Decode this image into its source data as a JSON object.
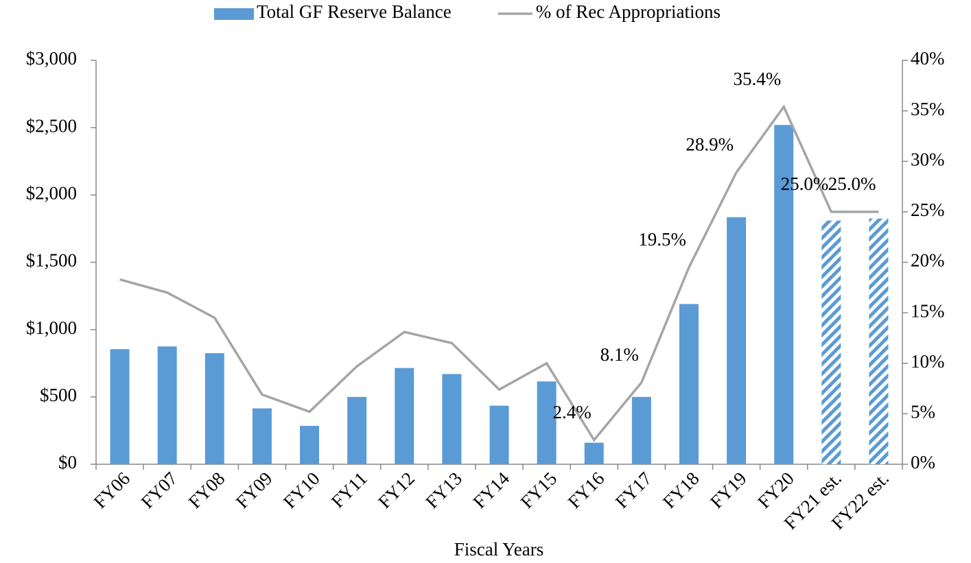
{
  "chart_data": {
    "type": "bar_line",
    "x_label": "Fiscal Years",
    "categories": [
      "FY06",
      "FY07",
      "FY08",
      "FY09",
      "FY10",
      "FY11",
      "FY12",
      "FY13",
      "FY14",
      "FY15",
      "FY16",
      "FY17",
      "FY18",
      "FY19",
      "FY20",
      "FY21 est.",
      "FY22 est."
    ],
    "series": [
      {
        "name": "Total GF Reserve Balance",
        "type": "bar",
        "color": "#5b9bd5",
        "values": [
          855,
          875,
          825,
          415,
          285,
          500,
          715,
          670,
          435,
          615,
          160,
          500,
          1190,
          1835,
          2520,
          1810,
          1825
        ],
        "hatched": [
          false,
          false,
          false,
          false,
          false,
          false,
          false,
          false,
          false,
          false,
          false,
          false,
          false,
          false,
          false,
          true,
          true
        ]
      },
      {
        "name": "% of Rec Appropriations",
        "type": "line",
        "color": "#a5a5a5",
        "axis": "y2",
        "values": [
          18.3,
          17.0,
          14.5,
          6.9,
          5.2,
          9.7,
          13.1,
          12.0,
          7.4,
          10.0,
          2.4,
          8.1,
          19.5,
          28.9,
          35.4,
          25.0,
          25.0
        ],
        "value_labels": [
          null,
          null,
          null,
          null,
          null,
          null,
          null,
          null,
          null,
          null,
          "2.4%",
          "8.1%",
          "19.5%",
          "28.9%",
          "35.4%",
          "25.0%",
          "25.0%"
        ]
      }
    ],
    "ylim": [
      0,
      3000
    ],
    "yticks": [
      {
        "value": 0,
        "label": "$0"
      },
      {
        "value": 500,
        "label": "$500"
      },
      {
        "value": 1000,
        "label": "$1,000"
      },
      {
        "value": 1500,
        "label": "$1,500"
      },
      {
        "value": 2000,
        "label": "$2,000"
      },
      {
        "value": 2500,
        "label": "$2,500"
      },
      {
        "value": 3000,
        "label": "$3,000"
      }
    ],
    "y2lim": [
      0,
      40
    ],
    "y2ticks": [
      {
        "value": 0,
        "label": "0%"
      },
      {
        "value": 5,
        "label": "5%"
      },
      {
        "value": 10,
        "label": "10%"
      },
      {
        "value": 15,
        "label": "15%"
      },
      {
        "value": 20,
        "label": "20%"
      },
      {
        "value": 25,
        "label": "25%"
      },
      {
        "value": 30,
        "label": "30%"
      },
      {
        "value": 35,
        "label": "35%"
      },
      {
        "value": 40,
        "label": "40%"
      }
    ],
    "legend": "top",
    "grid": false
  }
}
